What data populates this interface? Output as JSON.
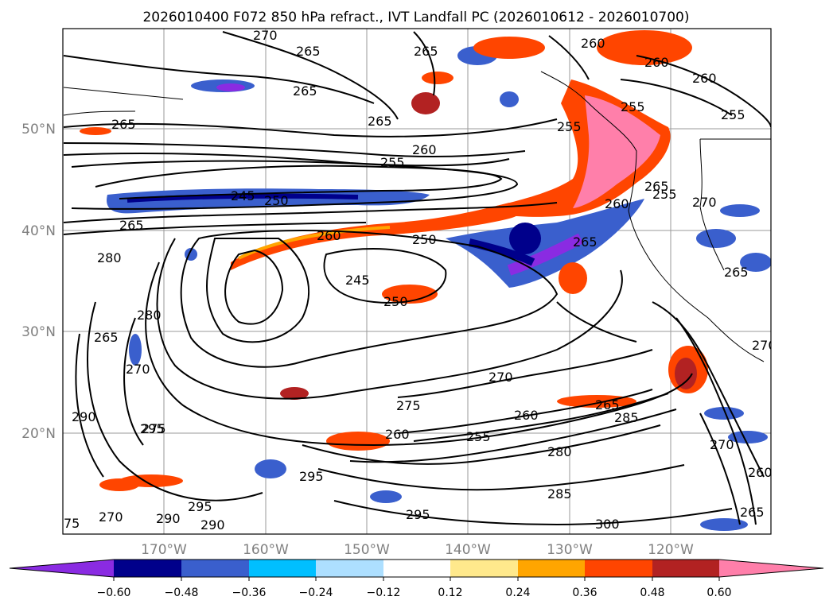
{
  "title": "2026010400 F072 850 hPa refract., IVT Landfall PC (2026010612 - 2026010700)",
  "map": {
    "lat_labels": [
      "50°N",
      "40°N",
      "30°N",
      "20°N"
    ],
    "lon_labels": [
      "170°W",
      "160°W",
      "150°W",
      "140°W",
      "130°W",
      "120°W"
    ],
    "contour_labels": [
      "270",
      "265",
      "265",
      "265",
      "265",
      "260",
      "260",
      "255",
      "255",
      "260",
      "255",
      "265",
      "245",
      "250",
      "250",
      "265",
      "265",
      "280",
      "280",
      "260",
      "245",
      "250",
      "265",
      "265",
      "270",
      "265",
      "260",
      "270",
      "285",
      "275",
      "255",
      "260",
      "270",
      "280",
      "290",
      "295",
      "295",
      "290",
      "285",
      "295",
      "300",
      "265",
      "75",
      "270",
      "290",
      "295",
      "260",
      "275",
      "270",
      "260",
      "265",
      "255",
      "260",
      "255",
      "270"
    ]
  },
  "colorbar": {
    "colors": [
      "#8A2BE2",
      "#00008B",
      "#3A5FCD",
      "#00BFFF",
      "#ADDFFF",
      "#FFFFFF",
      "#FFE98C",
      "#FFA500",
      "#FF4500",
      "#B22222",
      "#FF7FAA"
    ],
    "tick_labels": [
      "−0.60",
      "−0.48",
      "−0.36",
      "−0.24",
      "−0.12",
      "0.12",
      "0.24",
      "0.36",
      "0.48",
      "0.60"
    ]
  }
}
